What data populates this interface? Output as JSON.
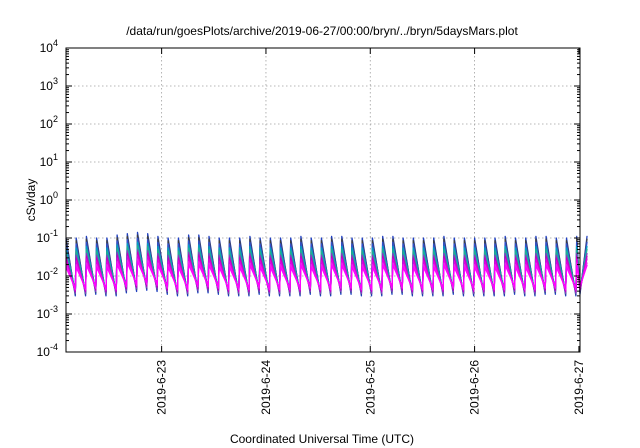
{
  "chart_data": {
    "type": "line",
    "title": "/data/run/goesPlots/archive/2019-06-27/00:00/bryn/../bryn/5daysMars.plot",
    "xlabel": "Coordinated Universal Time (UTC)",
    "ylabel": "cSv/day",
    "y_scale": "log",
    "ylim": [
      0.0001,
      10000
    ],
    "xlim": [
      "2019-06-22T02:00",
      "2019-06-27T00:15"
    ],
    "grid": true,
    "legend": "none",
    "x_ticks": [
      {
        "label": "2019-6-23",
        "value": "2019-06-23T00:00"
      },
      {
        "label": "2019-6-24",
        "value": "2019-06-24T00:00"
      },
      {
        "label": "2019-6-25",
        "value": "2019-06-25T00:00"
      },
      {
        "label": "2019-6-26",
        "value": "2019-06-26T00:00"
      },
      {
        "label": "2019-6-27",
        "value": "2019-06-27T00:00"
      }
    ],
    "y_ticks": [
      {
        "base": "10",
        "exp": "-4",
        "value": 0.0001
      },
      {
        "base": "10",
        "exp": "-3",
        "value": 0.001
      },
      {
        "base": "10",
        "exp": "-2",
        "value": 0.01
      },
      {
        "base": "10",
        "exp": "-1",
        "value": 0.1
      },
      {
        "base": "10",
        "exp": "0",
        "value": 1
      },
      {
        "base": "10",
        "exp": "1",
        "value": 10
      },
      {
        "base": "10",
        "exp": "2",
        "value": 100
      },
      {
        "base": "10",
        "exp": "3",
        "value": 1000
      },
      {
        "base": "10",
        "exp": "4",
        "value": 10000
      }
    ],
    "series": [
      {
        "color": "#2040c0",
        "values": [
          0.1,
          0.1,
          0.11,
          0.1,
          0.1,
          0.12,
          0.13,
          0.14,
          0.13,
          0.11,
          0.1,
          0.1,
          0.12,
          0.12,
          0.11,
          0.1,
          0.1,
          0.1,
          0.11,
          0.1,
          0.1,
          0.1,
          0.1,
          0.11,
          0.1,
          0.1,
          0.11,
          0.11,
          0.1,
          0.1,
          0.1,
          0.11,
          0.11,
          0.1,
          0.1,
          0.1,
          0.1,
          0.11,
          0.1,
          0.1,
          0.1,
          0.1,
          0.1,
          0.11,
          0.1,
          0.1,
          0.11,
          0.11,
          0.1,
          0.1,
          0.11,
          0.11
        ]
      },
      {
        "color": "#404040",
        "values": [
          0.085,
          0.085,
          0.093,
          0.085,
          0.085,
          0.102,
          0.11,
          0.119,
          0.11,
          0.093,
          0.085,
          0.085,
          0.102,
          0.102,
          0.093,
          0.085,
          0.085,
          0.085,
          0.093,
          0.085,
          0.085,
          0.085,
          0.085,
          0.093,
          0.085,
          0.085,
          0.093,
          0.093,
          0.085,
          0.085,
          0.085,
          0.093,
          0.093,
          0.085,
          0.085,
          0.085,
          0.085,
          0.093,
          0.085,
          0.085,
          0.085,
          0.085,
          0.085,
          0.093,
          0.085,
          0.085,
          0.093,
          0.093,
          0.085,
          0.085,
          0.093,
          0.093
        ]
      },
      {
        "color": "#3050d0",
        "values": [
          0.07,
          0.07,
          0.077,
          0.07,
          0.07,
          0.084,
          0.091,
          0.098,
          0.091,
          0.077,
          0.07,
          0.07,
          0.084,
          0.084,
          0.077,
          0.07,
          0.07,
          0.07,
          0.077,
          0.07,
          0.07,
          0.07,
          0.07,
          0.077,
          0.07,
          0.07,
          0.077,
          0.077,
          0.07,
          0.07,
          0.07,
          0.077,
          0.077,
          0.07,
          0.07,
          0.07,
          0.07,
          0.077,
          0.07,
          0.07,
          0.07,
          0.07,
          0.07,
          0.077,
          0.07,
          0.07,
          0.077,
          0.077,
          0.07,
          0.07,
          0.077,
          0.077
        ]
      },
      {
        "color": "#00a0c0",
        "values": [
          0.055,
          0.055,
          0.06,
          0.055,
          0.055,
          0.066,
          0.071,
          0.077,
          0.071,
          0.06,
          0.055,
          0.055,
          0.066,
          0.066,
          0.06,
          0.055,
          0.055,
          0.055,
          0.06,
          0.055,
          0.055,
          0.055,
          0.055,
          0.06,
          0.055,
          0.055,
          0.06,
          0.06,
          0.055,
          0.055,
          0.055,
          0.06,
          0.06,
          0.055,
          0.055,
          0.055,
          0.055,
          0.06,
          0.055,
          0.055,
          0.055,
          0.055,
          0.055,
          0.06,
          0.055,
          0.055,
          0.06,
          0.06,
          0.055,
          0.055,
          0.06,
          0.06
        ]
      },
      {
        "color": "#20b090",
        "values": [
          0.045,
          0.045,
          0.05,
          0.045,
          0.045,
          0.054,
          0.059,
          0.063,
          0.059,
          0.05,
          0.045,
          0.045,
          0.054,
          0.054,
          0.05,
          0.045,
          0.045,
          0.045,
          0.05,
          0.045,
          0.045,
          0.045,
          0.045,
          0.05,
          0.045,
          0.045,
          0.05,
          0.05,
          0.045,
          0.045,
          0.045,
          0.05,
          0.05,
          0.045,
          0.045,
          0.045,
          0.045,
          0.05,
          0.045,
          0.045,
          0.045,
          0.045,
          0.045,
          0.05,
          0.045,
          0.045,
          0.05,
          0.05,
          0.045,
          0.045,
          0.05,
          0.05
        ]
      },
      {
        "color": "#8040c0",
        "values": [
          0.035,
          0.035,
          0.039,
          0.035,
          0.035,
          0.042,
          0.046,
          0.049,
          0.046,
          0.039,
          0.035,
          0.035,
          0.042,
          0.042,
          0.039,
          0.035,
          0.035,
          0.035,
          0.039,
          0.035,
          0.035,
          0.035,
          0.035,
          0.039,
          0.035,
          0.035,
          0.039,
          0.039,
          0.035,
          0.035,
          0.035,
          0.039,
          0.039,
          0.035,
          0.035,
          0.035,
          0.035,
          0.039,
          0.035,
          0.035,
          0.035,
          0.035,
          0.035,
          0.039,
          0.035,
          0.035,
          0.039,
          0.039,
          0.035,
          0.035,
          0.039,
          0.039
        ]
      },
      {
        "color": "#c000c0",
        "values": [
          0.03,
          0.03,
          0.033,
          0.03,
          0.03,
          0.036,
          0.039,
          0.042,
          0.039,
          0.033,
          0.03,
          0.03,
          0.036,
          0.036,
          0.033,
          0.03,
          0.03,
          0.03,
          0.033,
          0.03,
          0.03,
          0.03,
          0.03,
          0.033,
          0.03,
          0.03,
          0.033,
          0.033,
          0.03,
          0.03,
          0.03,
          0.033,
          0.033,
          0.03,
          0.03,
          0.03,
          0.03,
          0.033,
          0.03,
          0.03,
          0.03,
          0.03,
          0.03,
          0.033,
          0.03,
          0.03,
          0.033,
          0.033,
          0.03,
          0.03,
          0.033,
          0.033
        ]
      },
      {
        "color": "#e000e0",
        "values": [
          0.025,
          0.025,
          0.028,
          0.025,
          0.025,
          0.03,
          0.033,
          0.035,
          0.033,
          0.028,
          0.025,
          0.025,
          0.03,
          0.03,
          0.028,
          0.025,
          0.025,
          0.025,
          0.028,
          0.025,
          0.025,
          0.025,
          0.025,
          0.028,
          0.025,
          0.025,
          0.028,
          0.028,
          0.025,
          0.025,
          0.025,
          0.028,
          0.028,
          0.025,
          0.025,
          0.025,
          0.025,
          0.028,
          0.025,
          0.025,
          0.025,
          0.025,
          0.025,
          0.028,
          0.025,
          0.025,
          0.028,
          0.028,
          0.025,
          0.025,
          0.028,
          0.028
        ]
      },
      {
        "color": "#f020f0",
        "values": [
          0.02,
          0.02,
          0.022,
          0.02,
          0.02,
          0.024,
          0.026,
          0.028,
          0.026,
          0.022,
          0.02,
          0.02,
          0.024,
          0.024,
          0.022,
          0.02,
          0.02,
          0.02,
          0.022,
          0.02,
          0.02,
          0.02,
          0.02,
          0.022,
          0.02,
          0.02,
          0.022,
          0.022,
          0.02,
          0.02,
          0.02,
          0.022,
          0.022,
          0.02,
          0.02,
          0.02,
          0.02,
          0.022,
          0.02,
          0.02,
          0.02,
          0.02,
          0.02,
          0.022,
          0.02,
          0.02,
          0.022,
          0.022,
          0.02,
          0.02,
          0.022,
          0.022
        ]
      },
      {
        "color": "#ff00ff",
        "values": [
          0.017,
          0.017,
          0.019,
          0.017,
          0.017,
          0.02,
          0.022,
          0.024,
          0.022,
          0.019,
          0.017,
          0.017,
          0.02,
          0.02,
          0.019,
          0.017,
          0.017,
          0.017,
          0.019,
          0.017,
          0.017,
          0.017,
          0.017,
          0.019,
          0.017,
          0.017,
          0.019,
          0.019,
          0.017,
          0.017,
          0.017,
          0.019,
          0.019,
          0.017,
          0.017,
          0.017,
          0.017,
          0.019,
          0.017,
          0.017,
          0.017,
          0.017,
          0.017,
          0.019,
          0.017,
          0.017,
          0.019,
          0.019,
          0.017,
          0.017,
          0.019,
          0.019
        ]
      }
    ]
  }
}
